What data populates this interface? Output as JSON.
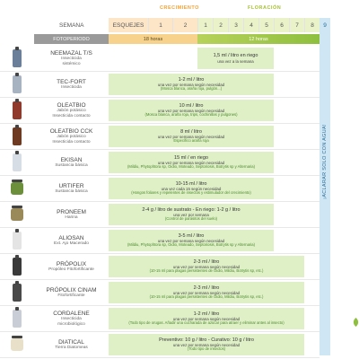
{
  "phases": {
    "growth": "CRECIMIENTO",
    "flowering": "FLORACIÓN"
  },
  "header": {
    "week_label": "SEMANA",
    "cuttings": "ESQUEJES",
    "growth_weeks": [
      "1",
      "2"
    ],
    "flower_weeks": [
      "1",
      "2",
      "3",
      "4",
      "5",
      "6",
      "7",
      "8"
    ],
    "last_week": "9"
  },
  "photoperiod": {
    "label": "FOTOPERIODO",
    "growth": "18 horas",
    "flower": "12 horas"
  },
  "water_note": "¡ACLARAR SOLO CON AGUA!",
  "products": [
    {
      "name": "NEEMAZAL T/S",
      "sub": [
        "Insecticida",
        "sistémico"
      ],
      "dose": "1,5 ml / litro en riego",
      "freq": "una vez a la semana",
      "extra": "",
      "color": "#6b7f9a",
      "shape": "bottle",
      "span": "flower-to-6"
    },
    {
      "name": "TEC-FORT",
      "sub": [
        "Insecticida"
      ],
      "dose": "1-2 ml / litro",
      "freq": "una vez por semana según necesidad",
      "extra": "(Mosca blanca, araña roja, pulgón...)",
      "color": "#a8b3c2",
      "shape": "bottle",
      "span": "all-to-6"
    },
    {
      "name": "OLEATBIO",
      "sub": [
        "Jabón potásico",
        "Insecticida contacto"
      ],
      "dose": "10 ml / litro",
      "freq": "una vez por semana según necesidad",
      "extra": "(Mosca blanca, araña roja, trips, cochinillas y pulgones)",
      "color": "#8f3a2c",
      "shape": "bottle",
      "span": "all-to-6"
    },
    {
      "name": "OLEATBIO CCK",
      "sub": [
        "Jabón potásico",
        "Insecticida contacto"
      ],
      "dose": "8 ml / litro",
      "freq": "una vez por semana según necesidad",
      "extra": "Específico araña roja",
      "color": "#6e3a22",
      "shape": "bottle",
      "span": "all-to-6"
    },
    {
      "name": "EKISAN",
      "sub": [
        "Sustancia básica"
      ],
      "dose": "15 ml / en riego",
      "freq": "una vez por semana según necesidad",
      "extra": "(Mildiu, Phytophtora sp, Oidio, Moteado, Septoriosis, Botrytis sp y Alternaria)",
      "color": "#d6dde4",
      "shape": "bottle",
      "span": "all-to-6"
    },
    {
      "name": "URTIFER",
      "sub": [
        "Sustancia básica"
      ],
      "dose": "10-15 ml / litro",
      "freq": "una vez cada 15 según necesidad",
      "extra": "(Hongos foliares y repelentes de insectos y estimulador del crecimiento)",
      "color": "#6b8f3a",
      "shape": "jar",
      "span": "all-to-6"
    },
    {
      "name": "PRONEEM",
      "sub": [
        "Harina"
      ],
      "dose": "2-4 g / litro de sustrato - En riego: 1-2 g / litro",
      "freq": "una vez por semana",
      "extra": "(Control de parásitos del suelo)",
      "color": "#9a8a5a",
      "shape": "jar",
      "span": "all-to-6"
    },
    {
      "name": "ALIOSAN",
      "sub": [
        "Ext. Ajo Macerado"
      ],
      "dose": "3-5 ml / litro",
      "freq": "una vez por semana según necesidad",
      "extra": "(Mildiu, Phytophtora sp, Oidio, Moteado, Septoriosis, Botrytis sp y Alternaria)",
      "color": "#e4e4e4",
      "shape": "bottle",
      "span": "all-to-6"
    },
    {
      "name": "PRÓPOLIX",
      "sub": [
        "Propóleo Fitofortificante"
      ],
      "dose": "2-3 ml / litro",
      "freq": "una vez por semana según necesidad",
      "extra": "(10-15 ml para plagas persistentes de Oidio, Mildiu, Botrytis sp, etc.)",
      "color": "#3a3a3a",
      "shape": "bottle",
      "span": "all-to-8"
    },
    {
      "name": "PRÓPOLIX CINAM",
      "sub": [
        "Fitofortificante"
      ],
      "dose": "2-3 ml / litro",
      "freq": "una vez por semana según necesidad",
      "extra": "(10-15 ml para plagas persistentes de Oidio, Mildiu, Botrytis sp, etc.)",
      "color": "#4a4a4a",
      "shape": "bottle",
      "span": "all-to-8"
    },
    {
      "name": "CORDALENE",
      "sub": [
        "Insecticida",
        "microbiológico"
      ],
      "dose": "1-2 ml / litro",
      "freq": "una vez por semana según necesidad",
      "extra": "(Todo tipo de orugas. Añadir una cucharada de azúcar para atraer y eliminar antes al insecto)",
      "color": "#c9ced6",
      "shape": "bottle",
      "span": "all-to-8"
    },
    {
      "name": "DIATICAL",
      "sub": [
        "Tierra Diatomeas"
      ],
      "dose": "Preventivo: 10 g / litro - Curativo: 10 g / litro",
      "freq": "una vez por semana según necesidad",
      "extra": "(Todo tipo de insectos)",
      "color": "#e8e0c8",
      "shape": "jar",
      "span": "all-to-8"
    }
  ]
}
